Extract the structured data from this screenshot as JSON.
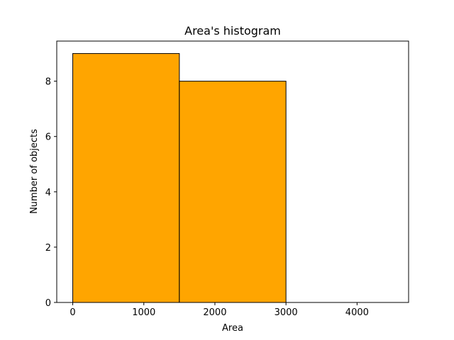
{
  "chart_data": {
    "type": "bar",
    "title": "Area's histogram",
    "xlabel": "Area",
    "ylabel": "Number of objects",
    "bins": [
      {
        "x0": 0,
        "x1": 1500,
        "count": 9
      },
      {
        "x0": 1500,
        "x1": 3000,
        "count": 8
      },
      {
        "x0": 3000,
        "x1": 4500,
        "count": 0
      }
    ],
    "xlim": [
      -225,
      4725
    ],
    "ylim": [
      0,
      9.45
    ],
    "xticks": [
      0,
      1000,
      2000,
      3000,
      4000
    ],
    "xtick_labels": [
      "0",
      "1000",
      "2000",
      "3000",
      "4000"
    ],
    "yticks": [
      0,
      2,
      4,
      6,
      8
    ],
    "ytick_labels": [
      "0",
      "2",
      "4",
      "6",
      "8"
    ],
    "bar_color": "#ffa500",
    "edge_color": "#000000",
    "grid": false,
    "legend": "none"
  }
}
